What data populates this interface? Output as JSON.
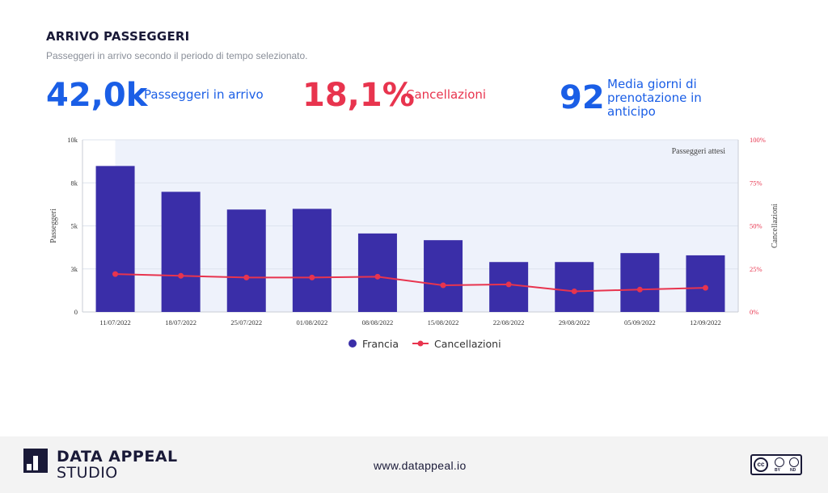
{
  "header": {
    "title": "ARRIVO PASSEGGERI",
    "subtitle": "Passeggeri in arrivo secondo il periodo di tempo selezionato."
  },
  "kpis": [
    {
      "value": "42,0k",
      "label": "Passeggeri in arrivo",
      "color": "#1a5ee6"
    },
    {
      "value": "18,1%",
      "label": "Cancellazioni",
      "color": "#e8344e"
    },
    {
      "value": "92",
      "label_lines": [
        "Media giorni di",
        "prenotazione in",
        "anticipo"
      ],
      "color": "#1a5ee6"
    }
  ],
  "chart_data": {
    "type": "bar",
    "categories": [
      "11/07/2022",
      "18/07/2022",
      "25/07/2022",
      "01/08/2022",
      "08/08/2022",
      "15/08/2022",
      "22/08/2022",
      "29/08/2022",
      "05/09/2022",
      "12/09/2022"
    ],
    "series": [
      {
        "name": "Francia",
        "type": "bar",
        "axis": "left",
        "color": "#3a2ea8",
        "values": [
          8480,
          6980,
          5950,
          5990,
          4560,
          4170,
          2900,
          2900,
          3420,
          3290
        ]
      },
      {
        "name": "Cancellazioni",
        "type": "line",
        "axis": "right",
        "color": "#e8344e",
        "values": [
          22,
          21,
          20,
          20,
          20.5,
          15.5,
          16,
          12,
          13,
          14
        ]
      }
    ],
    "left_axis": {
      "label": "Passeggeri",
      "ylim": [
        0,
        10000
      ],
      "ticks": [
        0,
        2500,
        5000,
        7500,
        10000
      ],
      "tick_labels": [
        "0",
        "3k",
        "5k",
        "8k",
        "10k"
      ]
    },
    "right_axis": {
      "label": "Cancellazioni",
      "ylim": [
        0,
        100
      ],
      "ticks": [
        0,
        25,
        50,
        75,
        100
      ],
      "tick_labels": [
        "0%",
        "25%",
        "50%",
        "75%",
        "100%"
      ]
    },
    "shaded_region": {
      "label": "Passeggeri attesi",
      "color": "#eef2fb"
    },
    "legend_position": "bottom-center",
    "grid": true
  },
  "footer": {
    "brand_line1": "DATA APPEAL",
    "brand_line2": "STUDIO",
    "url": "www.datappeal.io",
    "license_badge": {
      "cc": "cc",
      "by": "BY",
      "nd": "ND"
    }
  }
}
